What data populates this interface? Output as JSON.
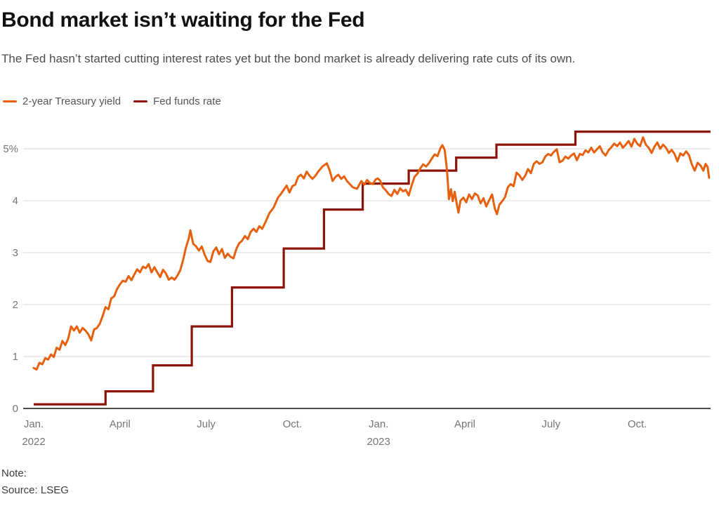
{
  "header": {
    "title": "Bond market isn’t waiting for the Fed",
    "subtitle": "The Fed hasn’t started cutting interest rates yet but the bond market is already delivering rate cuts of its own."
  },
  "legend": {
    "items": [
      {
        "label": "2-year Treasury yield",
        "color": "#e6610e"
      },
      {
        "label": "Fed funds rate",
        "color": "#8c1408"
      }
    ]
  },
  "footer": {
    "note": "Note:",
    "source": "Source: LSEG"
  },
  "colors": {
    "treasury_line": "#e6610e",
    "fed_funds_line": "#8c1408",
    "gridline": "#d8d8d8",
    "axis_line": "#333333"
  },
  "chart_data": {
    "type": "line",
    "title": "Bond market isn’t waiting for the Fed",
    "xlabel": "",
    "ylabel": "",
    "y_unit": "%",
    "ylim": [
      0,
      5.45
    ],
    "grid": true,
    "legend_position": "top-left",
    "y_ticks": [
      {
        "value": 5,
        "label": "5%"
      },
      {
        "value": 4,
        "label": "4"
      },
      {
        "value": 3,
        "label": "3"
      },
      {
        "value": 2,
        "label": "2"
      },
      {
        "value": 1,
        "label": "1"
      },
      {
        "value": 0,
        "label": "0"
      }
    ],
    "x_unit": "months since Jan 2022",
    "x_ticks": [
      {
        "month": 0,
        "label": "Jan.",
        "year": "2022"
      },
      {
        "month": 3,
        "label": "April",
        "year": ""
      },
      {
        "month": 6,
        "label": "July",
        "year": ""
      },
      {
        "month": 9,
        "label": "Oct.",
        "year": ""
      },
      {
        "month": 12,
        "label": "Jan.",
        "year": "2023"
      },
      {
        "month": 15,
        "label": "April",
        "year": ""
      },
      {
        "month": 18,
        "label": "July",
        "year": ""
      },
      {
        "month": 21,
        "label": "Oct.",
        "year": ""
      }
    ],
    "series": [
      {
        "name": "2-year Treasury yield",
        "color": "#e6610e",
        "style": "line",
        "points": [
          [
            0.0,
            0.78
          ],
          [
            0.1,
            0.75
          ],
          [
            0.2,
            0.88
          ],
          [
            0.3,
            0.85
          ],
          [
            0.4,
            0.97
          ],
          [
            0.5,
            0.94
          ],
          [
            0.6,
            1.04
          ],
          [
            0.7,
            0.99
          ],
          [
            0.8,
            1.17
          ],
          [
            0.9,
            1.13
          ],
          [
            1.0,
            1.3
          ],
          [
            1.1,
            1.22
          ],
          [
            1.2,
            1.34
          ],
          [
            1.3,
            1.58
          ],
          [
            1.4,
            1.5
          ],
          [
            1.5,
            1.58
          ],
          [
            1.6,
            1.46
          ],
          [
            1.7,
            1.55
          ],
          [
            1.8,
            1.5
          ],
          [
            1.9,
            1.43
          ],
          [
            2.0,
            1.31
          ],
          [
            2.1,
            1.52
          ],
          [
            2.2,
            1.55
          ],
          [
            2.3,
            1.63
          ],
          [
            2.4,
            1.78
          ],
          [
            2.5,
            1.95
          ],
          [
            2.6,
            1.91
          ],
          [
            2.7,
            2.12
          ],
          [
            2.8,
            2.16
          ],
          [
            2.9,
            2.3
          ],
          [
            3.0,
            2.39
          ],
          [
            3.1,
            2.46
          ],
          [
            3.2,
            2.44
          ],
          [
            3.3,
            2.55
          ],
          [
            3.4,
            2.47
          ],
          [
            3.5,
            2.58
          ],
          [
            3.6,
            2.68
          ],
          [
            3.7,
            2.62
          ],
          [
            3.8,
            2.73
          ],
          [
            3.9,
            2.7
          ],
          [
            4.0,
            2.78
          ],
          [
            4.1,
            2.62
          ],
          [
            4.2,
            2.72
          ],
          [
            4.3,
            2.62
          ],
          [
            4.4,
            2.53
          ],
          [
            4.5,
            2.67
          ],
          [
            4.6,
            2.6
          ],
          [
            4.7,
            2.48
          ],
          [
            4.8,
            2.52
          ],
          [
            4.9,
            2.48
          ],
          [
            5.0,
            2.56
          ],
          [
            5.1,
            2.66
          ],
          [
            5.2,
            2.86
          ],
          [
            5.3,
            3.1
          ],
          [
            5.4,
            3.28
          ],
          [
            5.45,
            3.43
          ],
          [
            5.55,
            3.17
          ],
          [
            5.65,
            3.12
          ],
          [
            5.75,
            3.04
          ],
          [
            5.85,
            3.12
          ],
          [
            5.95,
            2.96
          ],
          [
            6.05,
            2.84
          ],
          [
            6.15,
            2.82
          ],
          [
            6.25,
            3.02
          ],
          [
            6.35,
            3.1
          ],
          [
            6.45,
            2.97
          ],
          [
            6.55,
            3.07
          ],
          [
            6.65,
            2.9
          ],
          [
            6.75,
            2.98
          ],
          [
            6.85,
            2.92
          ],
          [
            6.95,
            2.89
          ],
          [
            7.05,
            3.07
          ],
          [
            7.15,
            3.18
          ],
          [
            7.25,
            3.23
          ],
          [
            7.35,
            3.32
          ],
          [
            7.45,
            3.26
          ],
          [
            7.55,
            3.4
          ],
          [
            7.65,
            3.46
          ],
          [
            7.75,
            3.4
          ],
          [
            7.85,
            3.51
          ],
          [
            7.95,
            3.46
          ],
          [
            8.05,
            3.57
          ],
          [
            8.2,
            3.76
          ],
          [
            8.35,
            3.87
          ],
          [
            8.5,
            4.06
          ],
          [
            8.6,
            4.13
          ],
          [
            8.7,
            4.21
          ],
          [
            8.8,
            4.29
          ],
          [
            8.9,
            4.16
          ],
          [
            9.0,
            4.28
          ],
          [
            9.1,
            4.31
          ],
          [
            9.2,
            4.46
          ],
          [
            9.3,
            4.5
          ],
          [
            9.4,
            4.43
          ],
          [
            9.5,
            4.56
          ],
          [
            9.6,
            4.48
          ],
          [
            9.7,
            4.42
          ],
          [
            9.8,
            4.48
          ],
          [
            9.9,
            4.56
          ],
          [
            10.05,
            4.66
          ],
          [
            10.2,
            4.72
          ],
          [
            10.3,
            4.58
          ],
          [
            10.4,
            4.38
          ],
          [
            10.5,
            4.46
          ],
          [
            10.6,
            4.5
          ],
          [
            10.7,
            4.42
          ],
          [
            10.8,
            4.47
          ],
          [
            10.9,
            4.38
          ],
          [
            11.0,
            4.32
          ],
          [
            11.1,
            4.26
          ],
          [
            11.25,
            4.23
          ],
          [
            11.4,
            4.38
          ],
          [
            11.5,
            4.31
          ],
          [
            11.6,
            4.4
          ],
          [
            11.7,
            4.34
          ],
          [
            11.8,
            4.32
          ],
          [
            11.9,
            4.41
          ],
          [
            11.97,
            4.43
          ],
          [
            12.05,
            4.39
          ],
          [
            12.15,
            4.26
          ],
          [
            12.25,
            4.2
          ],
          [
            12.35,
            4.13
          ],
          [
            12.45,
            4.09
          ],
          [
            12.55,
            4.21
          ],
          [
            12.65,
            4.13
          ],
          [
            12.75,
            4.24
          ],
          [
            12.85,
            4.18
          ],
          [
            12.95,
            4.21
          ],
          [
            13.05,
            4.1
          ],
          [
            13.15,
            4.29
          ],
          [
            13.25,
            4.46
          ],
          [
            13.35,
            4.52
          ],
          [
            13.45,
            4.62
          ],
          [
            13.55,
            4.7
          ],
          [
            13.65,
            4.66
          ],
          [
            13.75,
            4.72
          ],
          [
            13.85,
            4.81
          ],
          [
            13.95,
            4.89
          ],
          [
            14.05,
            4.86
          ],
          [
            14.15,
            5.01
          ],
          [
            14.22,
            5.07
          ],
          [
            14.3,
            4.98
          ],
          [
            14.38,
            4.59
          ],
          [
            14.45,
            4.03
          ],
          [
            14.52,
            4.22
          ],
          [
            14.58,
            3.99
          ],
          [
            14.65,
            4.17
          ],
          [
            14.72,
            3.94
          ],
          [
            14.78,
            3.77
          ],
          [
            14.85,
            4.0
          ],
          [
            14.95,
            4.06
          ],
          [
            15.05,
            3.97
          ],
          [
            15.15,
            4.12
          ],
          [
            15.25,
            4.03
          ],
          [
            15.35,
            4.14
          ],
          [
            15.45,
            4.1
          ],
          [
            15.55,
            3.95
          ],
          [
            15.65,
            4.05
          ],
          [
            15.75,
            3.89
          ],
          [
            15.85,
            4.01
          ],
          [
            15.95,
            4.12
          ],
          [
            16.05,
            3.84
          ],
          [
            16.12,
            3.74
          ],
          [
            16.2,
            3.92
          ],
          [
            16.3,
            3.99
          ],
          [
            16.4,
            4.07
          ],
          [
            16.5,
            4.26
          ],
          [
            16.6,
            4.32
          ],
          [
            16.7,
            4.28
          ],
          [
            16.8,
            4.54
          ],
          [
            16.9,
            4.49
          ],
          [
            17.0,
            4.4
          ],
          [
            17.1,
            4.48
          ],
          [
            17.2,
            4.61
          ],
          [
            17.3,
            4.53
          ],
          [
            17.4,
            4.71
          ],
          [
            17.5,
            4.76
          ],
          [
            17.6,
            4.71
          ],
          [
            17.7,
            4.74
          ],
          [
            17.8,
            4.85
          ],
          [
            17.9,
            4.9
          ],
          [
            18.0,
            4.87
          ],
          [
            18.1,
            4.94
          ],
          [
            18.2,
            4.99
          ],
          [
            18.3,
            4.74
          ],
          [
            18.4,
            4.77
          ],
          [
            18.5,
            4.85
          ],
          [
            18.6,
            4.81
          ],
          [
            18.7,
            4.87
          ],
          [
            18.8,
            4.91
          ],
          [
            18.9,
            4.78
          ],
          [
            19.0,
            4.9
          ],
          [
            19.1,
            4.88
          ],
          [
            19.2,
            4.97
          ],
          [
            19.3,
            4.93
          ],
          [
            19.4,
            5.02
          ],
          [
            19.5,
            4.93
          ],
          [
            19.6,
            4.99
          ],
          [
            19.7,
            5.05
          ],
          [
            19.8,
            4.93
          ],
          [
            19.9,
            4.87
          ],
          [
            20.0,
            4.97
          ],
          [
            20.1,
            5.03
          ],
          [
            20.2,
            5.1
          ],
          [
            20.3,
            5.05
          ],
          [
            20.4,
            5.12
          ],
          [
            20.5,
            5.02
          ],
          [
            20.6,
            5.08
          ],
          [
            20.7,
            5.15
          ],
          [
            20.8,
            5.04
          ],
          [
            20.9,
            5.19
          ],
          [
            21.0,
            5.1
          ],
          [
            21.1,
            5.05
          ],
          [
            21.2,
            5.22
          ],
          [
            21.3,
            5.08
          ],
          [
            21.4,
            5.02
          ],
          [
            21.5,
            4.92
          ],
          [
            21.6,
            5.04
          ],
          [
            21.7,
            5.12
          ],
          [
            21.8,
            5.0
          ],
          [
            21.9,
            5.08
          ],
          [
            22.0,
            5.02
          ],
          [
            22.1,
            4.92
          ],
          [
            22.2,
            4.98
          ],
          [
            22.3,
            4.9
          ],
          [
            22.4,
            4.76
          ],
          [
            22.5,
            4.91
          ],
          [
            22.6,
            4.87
          ],
          [
            22.7,
            4.95
          ],
          [
            22.8,
            4.88
          ],
          [
            22.9,
            4.7
          ],
          [
            23.0,
            4.58
          ],
          [
            23.1,
            4.73
          ],
          [
            23.2,
            4.68
          ],
          [
            23.3,
            4.58
          ],
          [
            23.38,
            4.71
          ],
          [
            23.45,
            4.65
          ],
          [
            23.5,
            4.44
          ]
        ]
      },
      {
        "name": "Fed funds rate",
        "color": "#8c1408",
        "style": "step",
        "points": [
          [
            0.0,
            0.08
          ],
          [
            2.5,
            0.33
          ],
          [
            4.15,
            0.83
          ],
          [
            5.5,
            1.58
          ],
          [
            6.9,
            2.33
          ],
          [
            8.7,
            3.08
          ],
          [
            10.1,
            3.83
          ],
          [
            11.45,
            4.33
          ],
          [
            13.05,
            4.58
          ],
          [
            14.7,
            4.83
          ],
          [
            16.1,
            5.08
          ],
          [
            18.85,
            5.33
          ]
        ],
        "end_month": 23.55
      }
    ]
  }
}
